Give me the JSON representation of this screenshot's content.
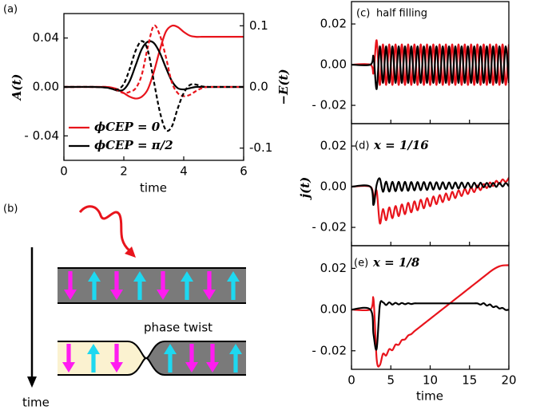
{
  "chart_data": [
    {
      "type": "line",
      "panel_label": "(a)",
      "xlabel": "time",
      "ylabel": "A(t)",
      "y2label": "−E(t)",
      "x": [
        0,
        1,
        1.4,
        1.6,
        1.8,
        2,
        2.2,
        2.4,
        2.6,
        2.8,
        3,
        3.2,
        3.4,
        3.6,
        3.8,
        4,
        4.2,
        4.4,
        4.6,
        4.8,
        5,
        6
      ],
      "xlim": [
        0,
        6
      ],
      "xticks": [
        0,
        2,
        4,
        6
      ],
      "ylim": [
        -0.06,
        0.06
      ],
      "yticks": [
        {
          "value": -0.04,
          "label": "- 0.04"
        },
        {
          "value": 0,
          "label": "0.00"
        },
        0.04
      ],
      "y2lim": [
        -0.12,
        0.12
      ],
      "y2ticks": [
        -0.1,
        {
          "value": 0,
          "label": "0.0"
        },
        0.1
      ],
      "legend": "lower left",
      "series": [
        {
          "name": "ϕCEP = 0",
          "color": "#e8141c",
          "style": "solid",
          "values": [
            0,
            0,
            0,
            -0.0005,
            -0.002,
            -0.005,
            -0.008,
            -0.0095,
            -0.008,
            -0.002,
            0.012,
            0.03,
            0.045,
            0.05,
            0.049,
            0.045,
            0.042,
            0.041,
            0.041,
            0.041,
            0.041,
            0.041
          ]
        },
        {
          "name": "ϕCEP = π/2",
          "color": "#000000",
          "style": "solid",
          "values": [
            0,
            0,
            -0.0005,
            -0.0015,
            -0.003,
            -0.002,
            0.005,
            0.018,
            0.031,
            0.037,
            0.036,
            0.028,
            0.016,
            0.005,
            -0.001,
            -0.002,
            -0.001,
            0,
            0,
            0,
            0,
            0
          ]
        },
        {
          "color": "#e8141c",
          "style": "dashed",
          "axis": "y2",
          "values": [
            0,
            0,
            0,
            -0.002,
            -0.006,
            -0.01,
            -0.008,
            -0.002,
            0.02,
            0.065,
            0.1,
            0.085,
            0.05,
            0.008,
            -0.01,
            -0.015,
            -0.013,
            -0.007,
            -0.002,
            0,
            0,
            0
          ]
        },
        {
          "color": "#000000",
          "style": "dashed",
          "axis": "y2",
          "values": [
            0,
            0,
            -0.001,
            -0.003,
            -0.004,
            0.005,
            0.03,
            0.06,
            0.075,
            0.06,
            0.01,
            -0.04,
            -0.07,
            -0.065,
            -0.035,
            -0.01,
            0.003,
            0.004,
            0.001,
            0,
            0,
            0
          ]
        }
      ]
    },
    {
      "type": "line",
      "panel_label": "(c)",
      "annotation": "half filling",
      "x": [
        0,
        2.4,
        2.8,
        3.2,
        3.6,
        4,
        4.4,
        4.8,
        5.2,
        5.6,
        6,
        6.4,
        6.8,
        7.2,
        7.6,
        8,
        8.4,
        8.8,
        9.2,
        9.6,
        10,
        10.4,
        10.8,
        11.2,
        11.6,
        12,
        12.4,
        12.8,
        13.2,
        13.6,
        14,
        14.4,
        14.8,
        15.2,
        15.6,
        16,
        16.4,
        16.8,
        17.2,
        17.6,
        18,
        18.4,
        18.8,
        19.2,
        19.6,
        20
      ],
      "xlim": [
        0,
        20
      ],
      "ylim": [
        -0.029,
        0.031
      ],
      "yticks": [
        {
          "value": -0.02,
          "label": "- 0.02"
        },
        {
          "value": 0,
          "label": "0.00"
        },
        0.02
      ],
      "series": [
        {
          "color": "#e8141c",
          "values": [
            0,
            0,
            -0.004,
            0.012,
            -0.01,
            0.01,
            -0.01,
            0.01,
            -0.01,
            0.01,
            -0.01,
            0.01,
            -0.01,
            0.01,
            -0.01,
            0.01,
            -0.01,
            0.01,
            -0.01,
            0.01,
            -0.01,
            0.01,
            -0.01,
            0.01,
            -0.01,
            0.01,
            -0.01,
            0.01,
            -0.01,
            0.01,
            -0.01,
            0.01,
            -0.01,
            0.01,
            -0.01,
            0.01,
            -0.01,
            0.01,
            -0.01,
            0.01,
            -0.01,
            0.01,
            -0.01,
            0.01,
            -0.01,
            0.01
          ]
        },
        {
          "color": "#000000",
          "values": [
            0,
            0,
            0.004,
            -0.012,
            0.009,
            -0.009,
            0.009,
            -0.009,
            0.009,
            -0.009,
            0.009,
            -0.009,
            0.009,
            -0.009,
            0.009,
            -0.009,
            0.009,
            -0.009,
            0.009,
            -0.009,
            0.009,
            -0.009,
            0.009,
            -0.009,
            0.009,
            -0.009,
            0.009,
            -0.009,
            0.009,
            -0.009,
            0.009,
            -0.009,
            0.009,
            -0.009,
            0.009,
            -0.009,
            0.009,
            -0.009,
            0.009,
            -0.009,
            0.009,
            -0.009,
            0.009,
            -0.009,
            0.009,
            -0.009
          ]
        }
      ]
    },
    {
      "type": "line",
      "panel_label": "(d)",
      "annotation": "x = 1/16",
      "ylabel": "j(t)",
      "x": [
        0,
        2.4,
        2.8,
        3.2,
        3.6,
        4,
        4.4,
        4.8,
        5.2,
        5.6,
        6,
        6.4,
        6.8,
        7.2,
        7.6,
        8,
        8.4,
        8.8,
        9.2,
        9.6,
        10,
        10.4,
        10.8,
        11.2,
        11.6,
        12,
        12.4,
        12.8,
        13.2,
        13.6,
        14,
        14.4,
        14.8,
        15.2,
        15.6,
        16,
        16.4,
        16.8,
        17.2,
        17.6,
        18,
        18.4,
        18.8,
        19.2,
        19.6,
        20
      ],
      "xlim": [
        0,
        20
      ],
      "ylim": [
        -0.029,
        0.031
      ],
      "yticks": [
        {
          "value": -0.02,
          "label": "- 0.02"
        },
        {
          "value": 0,
          "label": "0.00"
        },
        0.02
      ],
      "series": [
        {
          "color": "#e8141c",
          "values": [
            0,
            0,
            -0.006,
            -0.002,
            -0.018,
            -0.011,
            -0.0165,
            -0.0102,
            -0.0155,
            -0.0095,
            -0.0145,
            -0.0087,
            -0.0135,
            -0.0079,
            -0.0126,
            -0.0072,
            -0.0116,
            -0.0064,
            -0.0106,
            -0.0056,
            -0.0096,
            -0.0048,
            -0.0086,
            -0.0041,
            -0.0076,
            -0.0033,
            -0.0066,
            -0.0025,
            -0.0056,
            -0.0018,
            -0.0046,
            -0.001,
            -0.0036,
            -0.0002,
            -0.0027,
            0.0006,
            -0.0017,
            0.0013,
            -0.0007,
            0.0021,
            0.0003,
            0.0029,
            0.0013,
            0.0036,
            0.0023,
            0.0044
          ]
        },
        {
          "color": "#000000",
          "values": [
            0,
            0,
            -0.009,
            0.001,
            0.004,
            -0.0025,
            0.0025,
            -0.0024,
            0.0024,
            -0.0022,
            0.0024,
            -0.0021,
            0.0024,
            -0.002,
            0.0023,
            -0.0018,
            0.0023,
            -0.0017,
            0.0023,
            -0.0016,
            0.0022,
            -0.0014,
            0.0022,
            -0.0013,
            0.0022,
            -0.0012,
            0.0021,
            -0.001,
            0.0021,
            -0.0009,
            0.0021,
            -0.0007,
            0.002,
            -0.0006,
            0.002,
            -0.0005,
            0.002,
            -0.0003,
            0.0019,
            -0.0002,
            0.0019,
            -0.0001,
            0.0019,
            0.0001,
            0.0018,
            0.0002
          ]
        }
      ]
    },
    {
      "type": "line",
      "panel_label": "(e)",
      "annotation": "x = 1/8",
      "xlabel": "time",
      "x": [
        0,
        2.4,
        2.8,
        3.2,
        3.6,
        4,
        4.4,
        4.8,
        5.2,
        5.6,
        6,
        6.4,
        6.8,
        7.2,
        7.6,
        8,
        8.4,
        8.8,
        9.2,
        9.6,
        10,
        10.4,
        10.8,
        11.2,
        11.6,
        12,
        12.4,
        12.8,
        13.2,
        13.6,
        14,
        14.4,
        14.8,
        15.2,
        15.6,
        16,
        16.4,
        16.8,
        17.2,
        17.6,
        18,
        18.4,
        18.8,
        19.2,
        19.6,
        20
      ],
      "xlim": [
        0,
        20
      ],
      "xticks": [
        0,
        5,
        10,
        15,
        20
      ],
      "ylim": [
        -0.029,
        0.031
      ],
      "yticks": [
        {
          "value": -0.02,
          "label": "- 0.02"
        },
        {
          "value": 0,
          "label": "0.00"
        },
        0.02
      ],
      "series": [
        {
          "color": "#e8141c",
          "values": [
            0,
            0,
            0.005,
            -0.024,
            -0.027,
            -0.0215,
            -0.0223,
            -0.0192,
            -0.0197,
            -0.017,
            -0.0171,
            -0.0148,
            -0.0145,
            -0.0126,
            -0.0119,
            -0.0105,
            -0.0093,
            -0.0081,
            -0.0069,
            -0.0057,
            -0.0045,
            -0.0033,
            -0.0021,
            -0.0009,
            0.0003,
            0.0015,
            0.0027,
            0.0039,
            0.0051,
            0.0063,
            0.0075,
            0.0087,
            0.0099,
            0.0111,
            0.0123,
            0.0135,
            0.0147,
            0.0159,
            0.0171,
            0.0183,
            0.0194,
            0.0203,
            0.021,
            0.0214,
            0.0215,
            0.0215
          ]
        },
        {
          "color": "#000000",
          "values": [
            0,
            0,
            -0.012,
            -0.019,
            0.002,
            0.0035,
            0.0022,
            0.0035,
            0.0024,
            0.0033,
            0.0025,
            0.0032,
            0.0026,
            0.0031,
            0.0027,
            0.003,
            0.003,
            0.003,
            0.003,
            0.003,
            0.003,
            0.003,
            0.003,
            0.003,
            0.003,
            0.003,
            0.003,
            0.003,
            0.003,
            0.003,
            0.003,
            0.003,
            0.003,
            0.003,
            0.003,
            0.003,
            0.0024,
            0.0031,
            0.0019,
            0.0025,
            0.0012,
            0.0016,
            0.0005,
            0.0008,
            -0.0002,
            0
          ]
        }
      ]
    }
  ],
  "diagram": {
    "panel_label": "(b)",
    "annotation": "phase twist",
    "axis_label": "time"
  }
}
